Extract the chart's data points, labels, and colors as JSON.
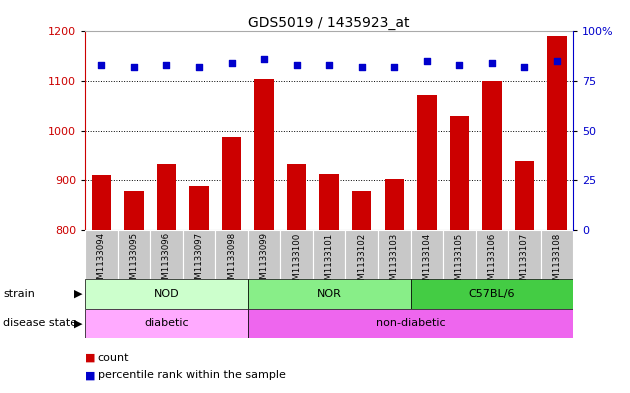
{
  "title": "GDS5019 / 1435923_at",
  "samples": [
    "GSM1133094",
    "GSM1133095",
    "GSM1133096",
    "GSM1133097",
    "GSM1133098",
    "GSM1133099",
    "GSM1133100",
    "GSM1133101",
    "GSM1133102",
    "GSM1133103",
    "GSM1133104",
    "GSM1133105",
    "GSM1133106",
    "GSM1133107",
    "GSM1133108"
  ],
  "counts": [
    910,
    878,
    933,
    888,
    988,
    1105,
    933,
    912,
    878,
    903,
    1072,
    1030,
    1100,
    938,
    1190
  ],
  "percentiles": [
    83,
    82,
    83,
    82,
    84,
    86,
    83,
    83,
    82,
    82,
    85,
    83,
    84,
    82,
    85
  ],
  "ylim_left": [
    800,
    1200
  ],
  "ylim_right": [
    0,
    100
  ],
  "yticks_left": [
    800,
    900,
    1000,
    1100,
    1200
  ],
  "yticks_right": [
    0,
    25,
    50,
    75,
    100
  ],
  "bar_color": "#cc0000",
  "dot_color": "#0000cc",
  "bar_width": 0.6,
  "strain_groups": [
    {
      "label": "NOD",
      "start": 0,
      "end": 5,
      "color": "#ccffcc"
    },
    {
      "label": "NOR",
      "start": 5,
      "end": 10,
      "color": "#88ee88"
    },
    {
      "label": "C57BL/6",
      "start": 10,
      "end": 15,
      "color": "#44cc44"
    }
  ],
  "disease_groups": [
    {
      "label": "diabetic",
      "start": 0,
      "end": 5,
      "color": "#ffaaff"
    },
    {
      "label": "non-diabetic",
      "start": 5,
      "end": 15,
      "color": "#ee66ee"
    }
  ],
  "strain_label": "strain",
  "disease_label": "disease state",
  "legend_count": "count",
  "legend_percentile": "percentile rank within the sample",
  "tick_bg_color": "#c8c8c8",
  "grid_lines": [
    900,
    1000,
    1100
  ]
}
